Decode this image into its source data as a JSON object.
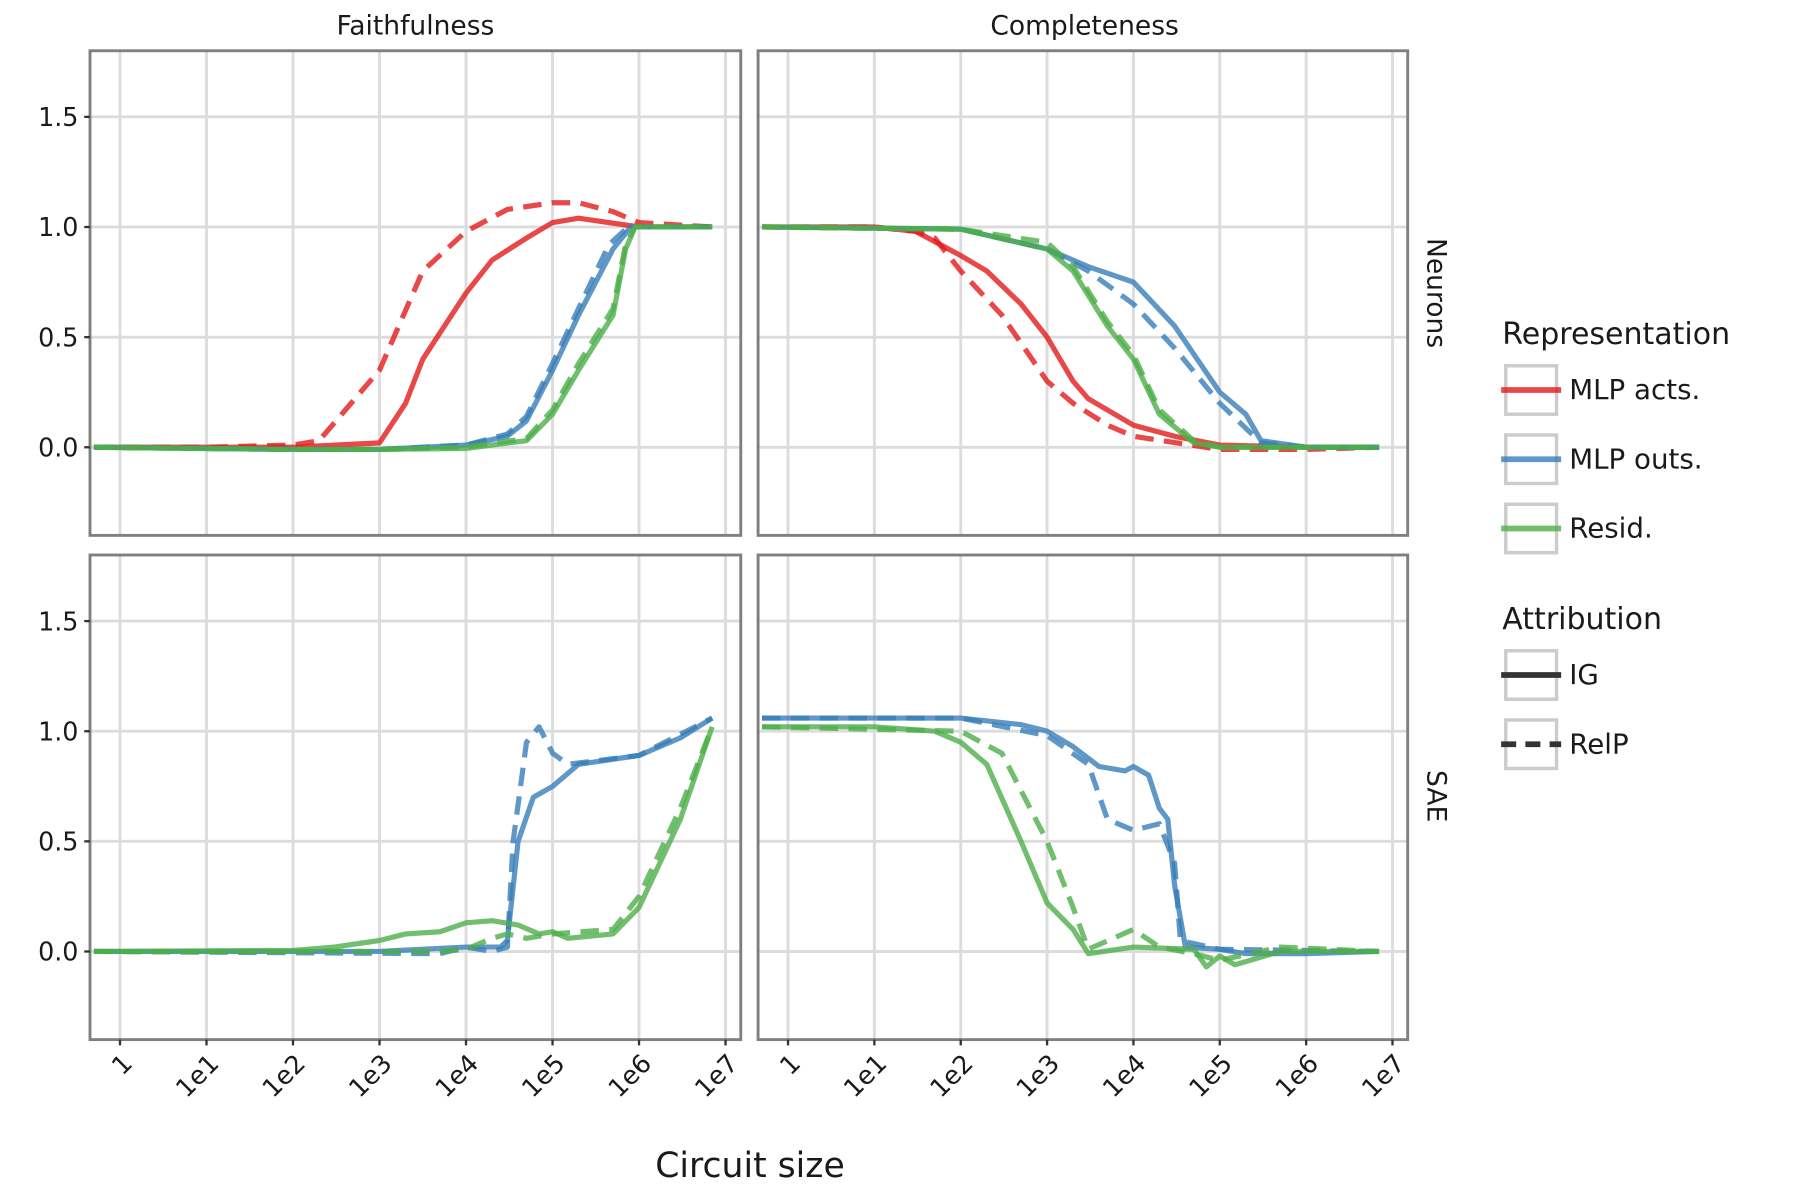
{
  "chart_data": {
    "type": "line",
    "xlabel": "Circuit size",
    "x_scale": "log",
    "xlim": [
      0.45,
      15000000
    ],
    "ylim": [
      -0.4,
      1.8
    ],
    "x_ticks": [
      1,
      10,
      100,
      1000,
      10000,
      100000,
      1000000,
      10000000
    ],
    "x_tick_labels": [
      "1",
      "1e1",
      "1e2",
      "1e3",
      "1e4",
      "1e5",
      "1e6",
      "1e7"
    ],
    "y_ticks": [
      0,
      0.5,
      1,
      1.5
    ],
    "y_tick_labels": [
      "0.0",
      "0.5",
      "1.0",
      "1.5"
    ],
    "grid": true,
    "columns": [
      "Faithfulness",
      "Completeness"
    ],
    "rows": [
      "Neurons",
      "SAE"
    ],
    "legend": {
      "placement": "right",
      "representation_title": "Representation",
      "representation": [
        {
          "name": "MLP acts.",
          "color": "#e41a1c"
        },
        {
          "name": "MLP outs.",
          "color": "#377eb8"
        },
        {
          "name": "Resid.",
          "color": "#4daf4a"
        }
      ],
      "attribution_title": "Attribution",
      "attribution": [
        {
          "name": "IG",
          "dash": "solid"
        },
        {
          "name": "RelP",
          "dash": "dashed"
        }
      ]
    },
    "panels": [
      {
        "column": "Faithfulness",
        "row": "Neurons",
        "series": [
          {
            "representation": "MLP acts.",
            "attribution": "IG",
            "x": [
              0.5,
              10,
              100,
              1000,
              2000,
              3162,
              10000,
              20000,
              50000,
              100000,
              200000,
              1000000,
              7000000
            ],
            "y": [
              0,
              0,
              0,
              0.02,
              0.2,
              0.4,
              0.7,
              0.85,
              0.95,
              1.02,
              1.04,
              1.0,
              1.0
            ]
          },
          {
            "representation": "MLP acts.",
            "attribution": "RelP",
            "x": [
              0.5,
              10,
              100,
              200,
              1000,
              3162,
              10000,
              30000,
              100000,
              200000,
              500000,
              1000000,
              7000000
            ],
            "y": [
              0,
              0,
              0.01,
              0.03,
              0.35,
              0.8,
              0.98,
              1.08,
              1.11,
              1.11,
              1.07,
              1.02,
              1.0
            ]
          },
          {
            "representation": "MLP outs.",
            "attribution": "IG",
            "x": [
              0.5,
              100,
              1000,
              10000,
              30000,
              50000,
              100000,
              200000,
              500000,
              800000,
              7000000
            ],
            "y": [
              0,
              -0.01,
              -0.01,
              0.01,
              0.05,
              0.12,
              0.35,
              0.6,
              0.9,
              1.0,
              1.0
            ]
          },
          {
            "representation": "MLP outs.",
            "attribution": "RelP",
            "x": [
              0.5,
              100,
              1000,
              10000,
              30000,
              50000,
              100000,
              200000,
              450000,
              750000,
              7000000
            ],
            "y": [
              0,
              -0.01,
              -0.01,
              0.01,
              0.06,
              0.14,
              0.38,
              0.63,
              0.92,
              1.0,
              1.0
            ]
          },
          {
            "representation": "Resid.",
            "attribution": "IG",
            "x": [
              0.5,
              100,
              1000,
              10000,
              50000,
              100000,
              200000,
              500000,
              700000,
              900000,
              7000000
            ],
            "y": [
              0,
              -0.01,
              -0.01,
              -0.005,
              0.03,
              0.15,
              0.35,
              0.6,
              0.9,
              1.0,
              1.0
            ]
          },
          {
            "representation": "Resid.",
            "attribution": "RelP",
            "x": [
              0.5,
              100,
              1000,
              10000,
              50000,
              100000,
              200000,
              500000,
              700000,
              900000,
              7000000
            ],
            "y": [
              0,
              -0.01,
              -0.01,
              0,
              0.04,
              0.17,
              0.38,
              0.63,
              0.92,
              1.0,
              1.0
            ]
          }
        ]
      },
      {
        "column": "Completeness",
        "row": "Neurons",
        "series": [
          {
            "representation": "MLP acts.",
            "attribution": "IG",
            "x": [
              0.5,
              10,
              30,
              100,
              200,
              500,
              1000,
              2000,
              3000,
              10000,
              30000,
              100000,
              1000000,
              7000000
            ],
            "y": [
              1.0,
              1.0,
              0.98,
              0.87,
              0.8,
              0.65,
              0.5,
              0.3,
              0.22,
              0.1,
              0.05,
              0.01,
              0,
              0
            ]
          },
          {
            "representation": "MLP acts.",
            "attribution": "RelP",
            "x": [
              0.5,
              10,
              30,
              50,
              100,
              300,
              1000,
              2000,
              5000,
              10000,
              100000,
              1000000,
              7000000
            ],
            "y": [
              1.0,
              1.0,
              0.98,
              0.95,
              0.8,
              0.6,
              0.3,
              0.2,
              0.1,
              0.05,
              -0.01,
              -0.01,
              0
            ]
          },
          {
            "representation": "MLP outs.",
            "attribution": "IG",
            "x": [
              0.5,
              100,
              1000,
              3000,
              10000,
              30000,
              100000,
              200000,
              300000,
              1000000,
              7000000
            ],
            "y": [
              1.0,
              0.99,
              0.9,
              0.82,
              0.75,
              0.55,
              0.25,
              0.15,
              0.03,
              0,
              0
            ]
          },
          {
            "representation": "MLP outs.",
            "attribution": "RelP",
            "x": [
              0.5,
              100,
              1000,
              3000,
              10000,
              30000,
              100000,
              300000,
              1000000,
              7000000
            ],
            "y": [
              1.0,
              0.99,
              0.9,
              0.8,
              0.65,
              0.45,
              0.2,
              0.02,
              0,
              0
            ]
          },
          {
            "representation": "Resid.",
            "attribution": "IG",
            "x": [
              0.5,
              100,
              1000,
              2000,
              5000,
              10000,
              20000,
              50000,
              100000,
              7000000
            ],
            "y": [
              1.0,
              0.99,
              0.9,
              0.8,
              0.55,
              0.4,
              0.15,
              0.02,
              0,
              0
            ]
          },
          {
            "representation": "Resid.",
            "attribution": "RelP",
            "x": [
              0.5,
              100,
              1000,
              2000,
              5000,
              10000,
              20000,
              50000,
              100000,
              7000000
            ],
            "y": [
              1.0,
              0.99,
              0.93,
              0.82,
              0.57,
              0.42,
              0.17,
              0.03,
              0,
              0
            ]
          }
        ]
      },
      {
        "column": "Faithfulness",
        "row": "SAE",
        "series": [
          {
            "representation": "MLP outs.",
            "attribution": "IG",
            "x": [
              0.5,
              1000,
              10000,
              25000,
              30000,
              40000,
              60000,
              100000,
              200000,
              1000000,
              3000000,
              7000000
            ],
            "y": [
              0,
              0,
              0.02,
              0.02,
              0.05,
              0.5,
              0.7,
              0.75,
              0.85,
              0.89,
              0.97,
              1.06
            ]
          },
          {
            "representation": "MLP outs.",
            "attribution": "RelP",
            "x": [
              0.5,
              5000,
              10000,
              20000,
              30000,
              35000,
              50000,
              70000,
              100000,
              150000,
              1000000,
              7000000
            ],
            "y": [
              0,
              -0.01,
              0.02,
              0,
              0.02,
              0.5,
              0.95,
              1.02,
              0.9,
              0.85,
              0.89,
              1.06
            ]
          },
          {
            "representation": "Resid.",
            "attribution": "IG",
            "x": [
              0.5,
              100,
              300,
              1000,
              2000,
              5000,
              10000,
              20000,
              40000,
              70000,
              100000,
              150000,
              500000,
              1000000,
              3000000,
              7000000
            ],
            "y": [
              0,
              0.005,
              0.02,
              0.05,
              0.08,
              0.09,
              0.13,
              0.14,
              0.12,
              0.08,
              0.09,
              0.06,
              0.08,
              0.2,
              0.6,
              1.02
            ]
          },
          {
            "representation": "Resid.",
            "attribution": "RelP",
            "x": [
              0.5,
              5000,
              10000,
              20000,
              30000,
              50000,
              100000,
              500000,
              1000000,
              3000000,
              7000000
            ],
            "y": [
              0,
              0,
              0.01,
              0.06,
              0.08,
              0.06,
              0.08,
              0.1,
              0.25,
              0.65,
              1.02
            ]
          }
        ]
      },
      {
        "column": "Completeness",
        "row": "SAE",
        "series": [
          {
            "representation": "MLP outs.",
            "attribution": "IG",
            "x": [
              0.5,
              100,
              500,
              1000,
              2000,
              4000,
              8000,
              10000,
              15000,
              20000,
              25000,
              30000,
              40000,
              100000,
              200000,
              1000000,
              7000000
            ],
            "y": [
              1.06,
              1.06,
              1.03,
              1.0,
              0.93,
              0.84,
              0.82,
              0.84,
              0.8,
              0.65,
              0.6,
              0.3,
              0.02,
              0.01,
              -0.01,
              -0.01,
              0
            ]
          },
          {
            "representation": "MLP outs.",
            "attribution": "RelP",
            "x": [
              0.5,
              100,
              1000,
              3000,
              5000,
              10000,
              20000,
              30000,
              35000,
              100000,
              7000000
            ],
            "y": [
              1.06,
              1.06,
              0.98,
              0.85,
              0.6,
              0.55,
              0.58,
              0.4,
              0.05,
              0.01,
              0
            ]
          },
          {
            "representation": "Resid.",
            "attribution": "IG",
            "x": [
              0.5,
              10,
              50,
              100,
              200,
              500,
              1000,
              2000,
              3000,
              10000,
              50000,
              70000,
              100000,
              150000,
              500000,
              7000000
            ],
            "y": [
              1.02,
              1.02,
              1.0,
              0.95,
              0.85,
              0.5,
              0.22,
              0.1,
              -0.01,
              0.02,
              0.01,
              -0.07,
              -0.02,
              -0.06,
              0,
              0
            ]
          },
          {
            "representation": "Resid.",
            "attribution": "RelP",
            "x": [
              0.5,
              100,
              300,
              1000,
              2000,
              3000,
              10000,
              20000,
              50000,
              100000,
              500000,
              7000000
            ],
            "y": [
              1.02,
              1.0,
              0.9,
              0.5,
              0.2,
              0.01,
              0.1,
              0.02,
              -0.01,
              -0.04,
              0.02,
              0
            ]
          }
        ]
      }
    ]
  }
}
